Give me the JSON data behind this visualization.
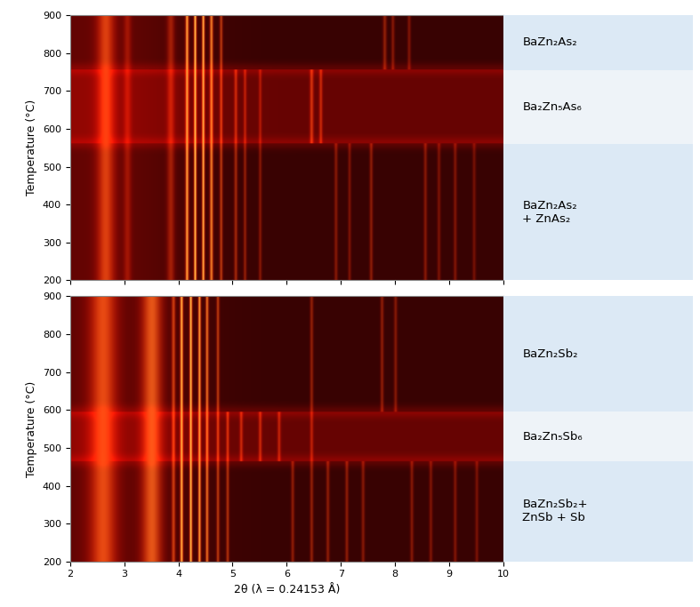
{
  "fig_width": 7.87,
  "fig_height": 6.83,
  "dpi": 100,
  "xlim": [
    2,
    10
  ],
  "ylim": [
    200,
    900
  ],
  "xlabel": "2θ (λ = 0.24153 Å)",
  "ylabel": "Temperature (°C)",
  "xticks": [
    2,
    3,
    4,
    5,
    6,
    7,
    8,
    9,
    10
  ],
  "yticks": [
    200,
    300,
    400,
    500,
    600,
    700,
    800,
    900
  ],
  "panel_bg_light": "#dce9f5",
  "panel_bg_mid": "#eef3f8",
  "plot1": {
    "phase_regions": [
      {
        "label": "BaZn₂As₂",
        "ymin": 755,
        "ymax": 900,
        "bg": "#dce9f5"
      },
      {
        "label": "Ba₂Zn₅As₆",
        "ymin": 560,
        "ymax": 755,
        "bg": "#eef3f8"
      },
      {
        "label": "BaZn₂As₂\n+ ZnAs₂",
        "ymin": 200,
        "ymax": 560,
        "bg": "#dce9f5"
      }
    ],
    "diffuse_regions": [
      {
        "ymin": 560,
        "ymax": 755,
        "extra_red": 0.18
      }
    ],
    "peaks": [
      {
        "x": 2.65,
        "sigma": 0.12,
        "intensity": 0.55,
        "yr": [
          200,
          900
        ]
      },
      {
        "x": 3.05,
        "sigma": 0.05,
        "intensity": 0.3,
        "yr": [
          200,
          900
        ]
      },
      {
        "x": 3.85,
        "sigma": 0.05,
        "intensity": 0.38,
        "yr": [
          200,
          900
        ]
      },
      {
        "x": 4.15,
        "sigma": 0.022,
        "intensity": 0.9,
        "yr": [
          200,
          900
        ]
      },
      {
        "x": 4.3,
        "sigma": 0.018,
        "intensity": 1.0,
        "yr": [
          200,
          900
        ]
      },
      {
        "x": 4.45,
        "sigma": 0.018,
        "intensity": 0.95,
        "yr": [
          200,
          900
        ]
      },
      {
        "x": 4.6,
        "sigma": 0.022,
        "intensity": 0.8,
        "yr": [
          200,
          900
        ]
      },
      {
        "x": 4.78,
        "sigma": 0.02,
        "intensity": 0.55,
        "yr": [
          200,
          900
        ]
      },
      {
        "x": 5.05,
        "sigma": 0.022,
        "intensity": 0.45,
        "yr": [
          200,
          755
        ]
      },
      {
        "x": 5.22,
        "sigma": 0.02,
        "intensity": 0.4,
        "yr": [
          200,
          755
        ]
      },
      {
        "x": 5.5,
        "sigma": 0.02,
        "intensity": 0.35,
        "yr": [
          200,
          755
        ]
      },
      {
        "x": 6.45,
        "sigma": 0.025,
        "intensity": 0.5,
        "yr": [
          560,
          755
        ]
      },
      {
        "x": 6.62,
        "sigma": 0.022,
        "intensity": 0.45,
        "yr": [
          560,
          755
        ]
      },
      {
        "x": 6.9,
        "sigma": 0.022,
        "intensity": 0.35,
        "yr": [
          200,
          560
        ]
      },
      {
        "x": 7.15,
        "sigma": 0.02,
        "intensity": 0.32,
        "yr": [
          200,
          560
        ]
      },
      {
        "x": 7.55,
        "sigma": 0.022,
        "intensity": 0.38,
        "yr": [
          200,
          560
        ]
      },
      {
        "x": 7.8,
        "sigma": 0.025,
        "intensity": 0.4,
        "yr": [
          755,
          900
        ]
      },
      {
        "x": 7.95,
        "sigma": 0.022,
        "intensity": 0.35,
        "yr": [
          755,
          900
        ]
      },
      {
        "x": 8.25,
        "sigma": 0.022,
        "intensity": 0.32,
        "yr": [
          755,
          900
        ]
      },
      {
        "x": 8.55,
        "sigma": 0.022,
        "intensity": 0.35,
        "yr": [
          200,
          560
        ]
      },
      {
        "x": 8.8,
        "sigma": 0.022,
        "intensity": 0.3,
        "yr": [
          200,
          560
        ]
      },
      {
        "x": 9.1,
        "sigma": 0.022,
        "intensity": 0.32,
        "yr": [
          200,
          560
        ]
      },
      {
        "x": 9.45,
        "sigma": 0.022,
        "intensity": 0.28,
        "yr": [
          200,
          560
        ]
      }
    ]
  },
  "plot2": {
    "phase_regions": [
      {
        "label": "BaZn₂Sb₂",
        "ymin": 595,
        "ymax": 900,
        "bg": "#dce9f5"
      },
      {
        "label": "Ba₂Zn₅Sb₆",
        "ymin": 465,
        "ymax": 595,
        "bg": "#eef3f8"
      },
      {
        "label": "BaZn₂Sb₂+\nZnSb + Sb",
        "ymin": 200,
        "ymax": 465,
        "bg": "#dce9f5"
      }
    ],
    "diffuse_regions": [
      {
        "ymin": 465,
        "ymax": 595,
        "extra_red": 0.18
      }
    ],
    "peaks": [
      {
        "x": 2.6,
        "sigma": 0.18,
        "intensity": 0.6,
        "yr": [
          200,
          900
        ]
      },
      {
        "x": 3.5,
        "sigma": 0.14,
        "intensity": 0.65,
        "yr": [
          200,
          900
        ]
      },
      {
        "x": 3.9,
        "sigma": 0.025,
        "intensity": 0.55,
        "yr": [
          200,
          900
        ]
      },
      {
        "x": 4.05,
        "sigma": 0.02,
        "intensity": 0.95,
        "yr": [
          200,
          900
        ]
      },
      {
        "x": 4.22,
        "sigma": 0.018,
        "intensity": 1.0,
        "yr": [
          200,
          900
        ]
      },
      {
        "x": 4.38,
        "sigma": 0.018,
        "intensity": 0.9,
        "yr": [
          200,
          900
        ]
      },
      {
        "x": 4.52,
        "sigma": 0.02,
        "intensity": 0.75,
        "yr": [
          200,
          900
        ]
      },
      {
        "x": 4.72,
        "sigma": 0.02,
        "intensity": 0.55,
        "yr": [
          200,
          900
        ]
      },
      {
        "x": 4.9,
        "sigma": 0.02,
        "intensity": 0.5,
        "yr": [
          200,
          595
        ]
      },
      {
        "x": 5.15,
        "sigma": 0.022,
        "intensity": 0.45,
        "yr": [
          465,
          595
        ]
      },
      {
        "x": 5.5,
        "sigma": 0.022,
        "intensity": 0.45,
        "yr": [
          465,
          595
        ]
      },
      {
        "x": 5.85,
        "sigma": 0.022,
        "intensity": 0.42,
        "yr": [
          465,
          595
        ]
      },
      {
        "x": 6.1,
        "sigma": 0.022,
        "intensity": 0.38,
        "yr": [
          200,
          465
        ]
      },
      {
        "x": 6.45,
        "sigma": 0.022,
        "intensity": 0.4,
        "yr": [
          200,
          900
        ]
      },
      {
        "x": 6.75,
        "sigma": 0.022,
        "intensity": 0.38,
        "yr": [
          200,
          465
        ]
      },
      {
        "x": 7.1,
        "sigma": 0.022,
        "intensity": 0.38,
        "yr": [
          200,
          465
        ]
      },
      {
        "x": 7.4,
        "sigma": 0.022,
        "intensity": 0.35,
        "yr": [
          200,
          465
        ]
      },
      {
        "x": 7.75,
        "sigma": 0.022,
        "intensity": 0.38,
        "yr": [
          595,
          900
        ]
      },
      {
        "x": 8.0,
        "sigma": 0.022,
        "intensity": 0.35,
        "yr": [
          595,
          900
        ]
      },
      {
        "x": 8.3,
        "sigma": 0.022,
        "intensity": 0.35,
        "yr": [
          200,
          465
        ]
      },
      {
        "x": 8.65,
        "sigma": 0.022,
        "intensity": 0.32,
        "yr": [
          200,
          465
        ]
      },
      {
        "x": 9.1,
        "sigma": 0.022,
        "intensity": 0.32,
        "yr": [
          200,
          465
        ]
      },
      {
        "x": 9.5,
        "sigma": 0.022,
        "intensity": 0.3,
        "yr": [
          200,
          465
        ]
      }
    ]
  }
}
